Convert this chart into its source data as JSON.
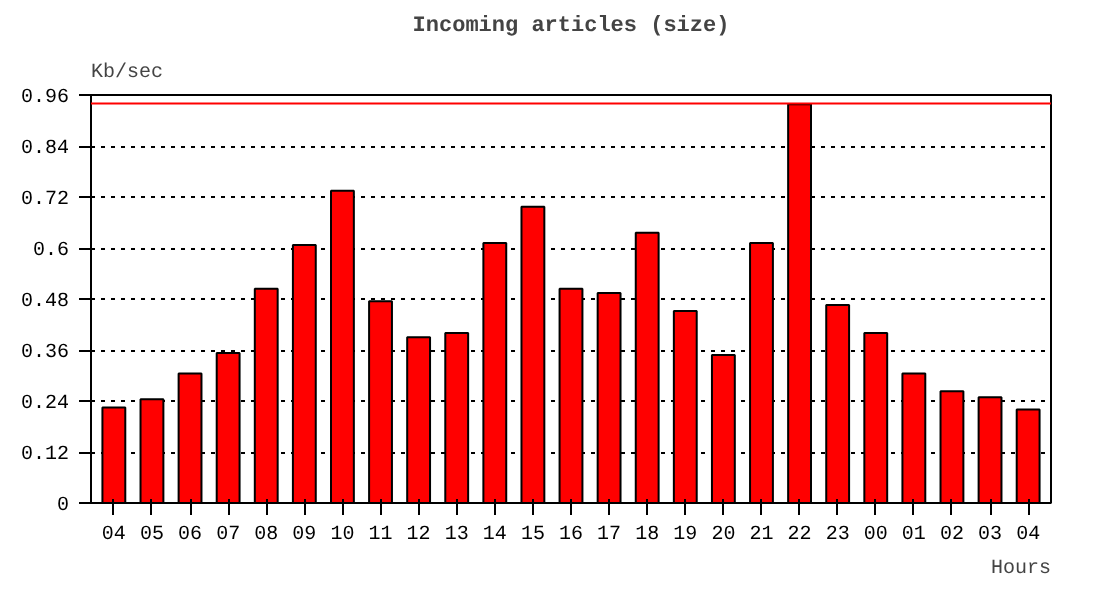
{
  "chart_data": {
    "type": "bar",
    "title": "Incoming articles (size)",
    "ylabel": "Kb/sec",
    "xlabel": "Hours",
    "categories": [
      "04",
      "05",
      "06",
      "07",
      "08",
      "09",
      "10",
      "11",
      "12",
      "13",
      "14",
      "15",
      "16",
      "17",
      "18",
      "19",
      "20",
      "21",
      "22",
      "23",
      "00",
      "01",
      "02",
      "03",
      "04"
    ],
    "values": [
      0.225,
      0.244,
      0.305,
      0.353,
      0.504,
      0.607,
      0.735,
      0.475,
      0.39,
      0.4,
      0.612,
      0.697,
      0.504,
      0.494,
      0.636,
      0.452,
      0.348,
      0.612,
      0.938,
      0.466,
      0.4,
      0.305,
      0.263,
      0.249,
      0.22
    ],
    "color": "#ff0000",
    "ylim": [
      0,
      0.96
    ],
    "yticks": [
      0,
      0.12,
      0.24,
      0.36,
      0.48,
      0.6,
      0.72,
      0.84,
      0.96
    ],
    "ref_lines": [
      {
        "axis": "y",
        "value": 0.94,
        "color": "#ff0000"
      }
    ],
    "grid": "y",
    "line_style": "dotted"
  }
}
